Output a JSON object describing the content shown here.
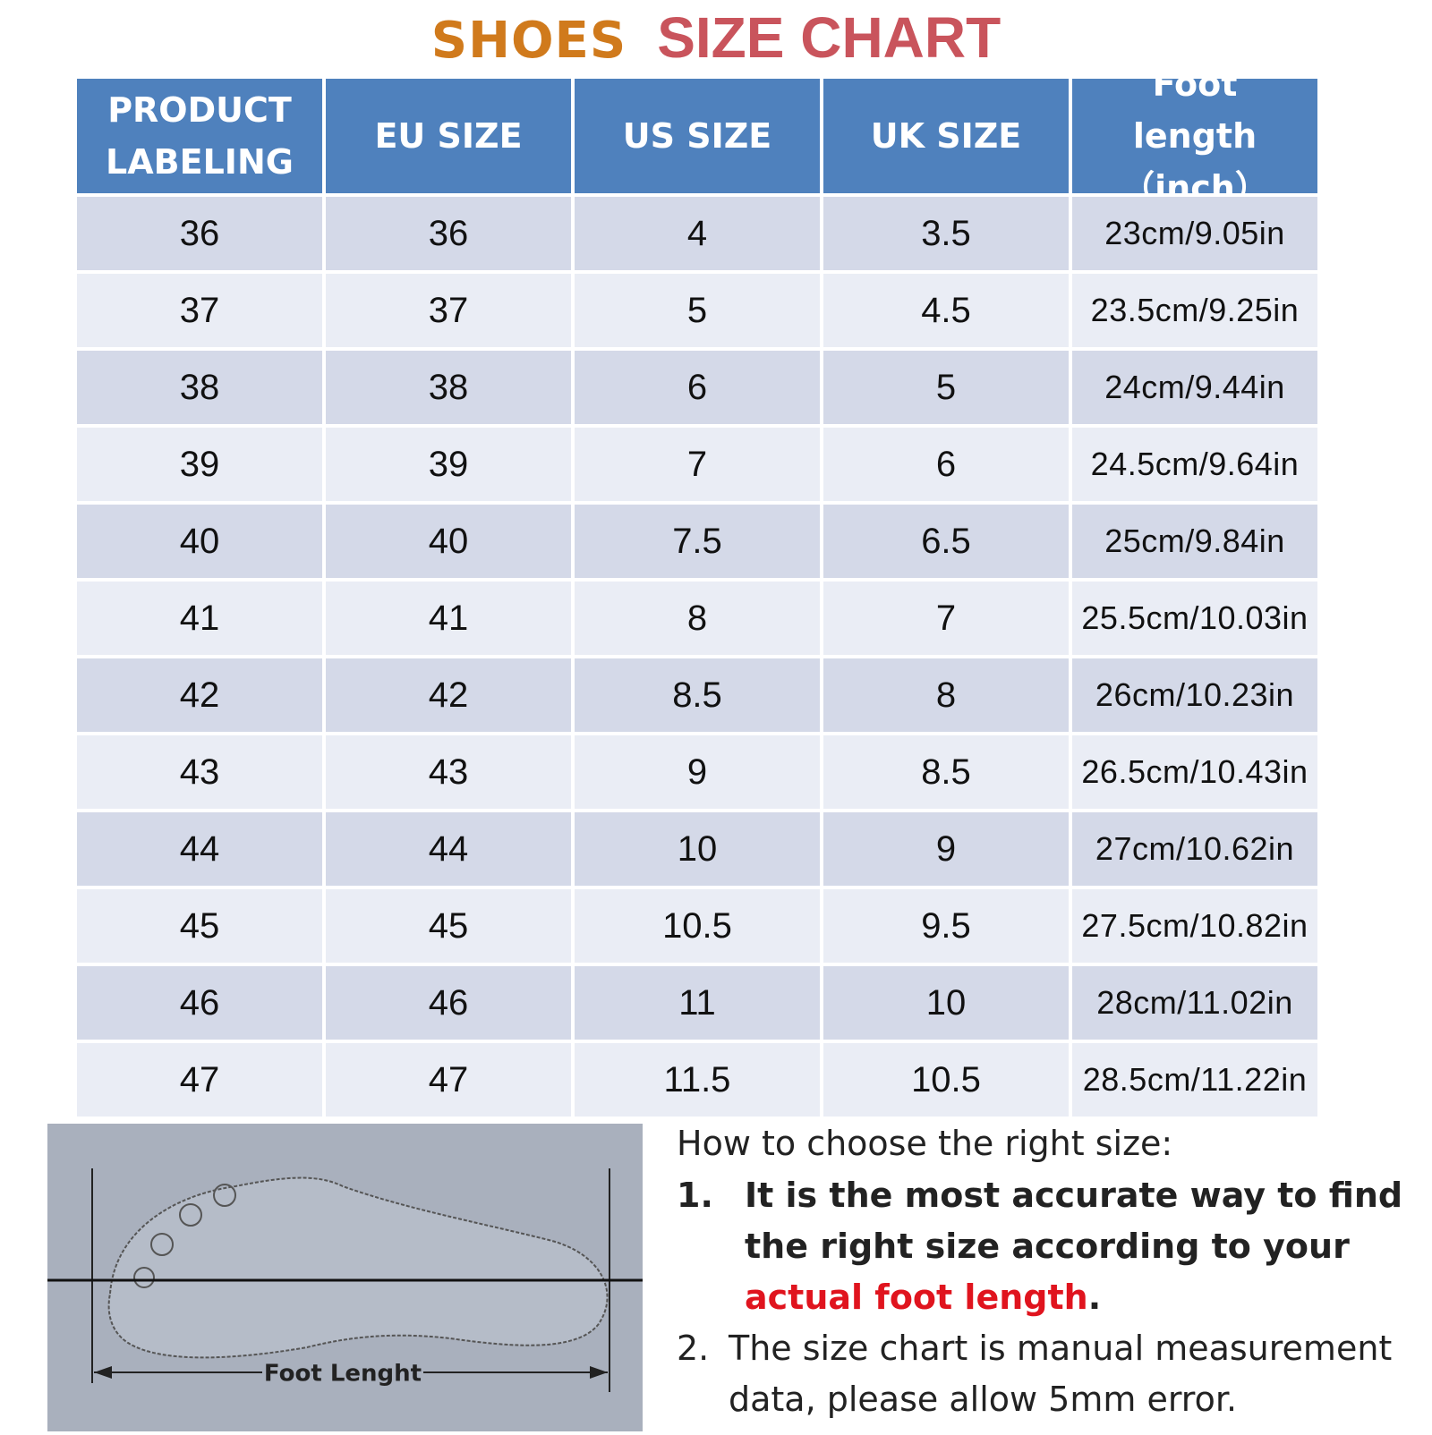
{
  "title": {
    "part1": "SHOES",
    "part2": "SIZE CHART"
  },
  "table": {
    "header": [
      "PRODUCT LABELING",
      "EU SIZE",
      "US SIZE",
      "UK SIZE",
      "Foot length（inch）"
    ],
    "rows": [
      [
        "36",
        "36",
        "4",
        "3.5",
        "23cm/9.05in"
      ],
      [
        "37",
        "37",
        "5",
        "4.5",
        "23.5cm/9.25in"
      ],
      [
        "38",
        "38",
        "6",
        "5",
        "24cm/9.44in"
      ],
      [
        "39",
        "39",
        "7",
        "6",
        "24.5cm/9.64in"
      ],
      [
        "40",
        "40",
        "7.5",
        "6.5",
        "25cm/9.84in"
      ],
      [
        "41",
        "41",
        "8",
        "7",
        "25.5cm/10.03in"
      ],
      [
        "42",
        "42",
        "8.5",
        "8",
        "26cm/10.23in"
      ],
      [
        "43",
        "43",
        "9",
        "8.5",
        "26.5cm/10.43in"
      ],
      [
        "44",
        "44",
        "10",
        "9",
        "27cm/10.62in"
      ],
      [
        "45",
        "45",
        "10.5",
        "9.5",
        "27.5cm/10.82in"
      ],
      [
        "46",
        "46",
        "11",
        "10",
        "28cm/11.02in"
      ],
      [
        "47",
        "47",
        "11.5",
        "10.5",
        "28.5cm/11.22in"
      ]
    ]
  },
  "diagram": {
    "label": "Foot Lenght"
  },
  "instructions": {
    "heading": "How to choose the right size:",
    "items": [
      {
        "number": "1.",
        "text": "It is the most accurate way to find the right size according to your",
        "highlight": "actual foot length",
        "end": "."
      },
      {
        "number": "2.",
        "text": "The size chart is manual measurement data, please allow 5mm error."
      }
    ]
  }
}
